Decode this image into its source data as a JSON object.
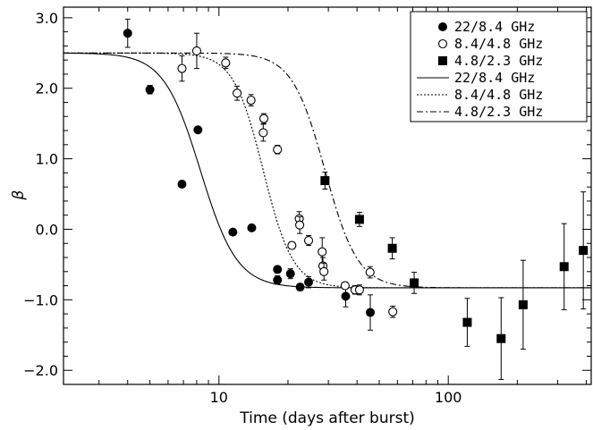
{
  "chart_data": {
    "type": "scatter",
    "title": "",
    "xlabel": "Time (days after burst)",
    "ylabel": "β",
    "xscale": "log",
    "xlim": [
      2.1,
      420
    ],
    "ylim": [
      -2.2,
      3.15
    ],
    "x_ticks": [
      {
        "value": 10,
        "label": "10"
      },
      {
        "value": 100,
        "label": "100"
      }
    ],
    "y_ticks": [
      {
        "value": 3.0,
        "label": "3.0"
      },
      {
        "value": 2.0,
        "label": "2.0"
      },
      {
        "value": 1.0,
        "label": "1.0"
      },
      {
        "value": 0.0,
        "label": "0.0"
      },
      {
        "value": -1.0,
        "label": "−1.0"
      },
      {
        "value": -2.0,
        "label": "−2.0"
      }
    ],
    "legend_position": "top-right",
    "series": [
      {
        "name": "22/8.4 GHz",
        "marker": "filled-circle",
        "points": [
          {
            "x": 4.0,
            "y": 2.78,
            "err": 0.2
          },
          {
            "x": 5.0,
            "y": 1.98,
            "err": 0.06
          },
          {
            "x": 6.9,
            "y": 0.64,
            "err": 0
          },
          {
            "x": 8.1,
            "y": 1.41,
            "err": 0
          },
          {
            "x": 11.5,
            "y": -0.04,
            "err": 0
          },
          {
            "x": 13.9,
            "y": 0.02,
            "err": 0
          },
          {
            "x": 18.0,
            "y": -0.57,
            "err": 0.05
          },
          {
            "x": 18.0,
            "y": -0.72,
            "err": 0.06
          },
          {
            "x": 20.5,
            "y": -0.63,
            "err": 0.07
          },
          {
            "x": 22.6,
            "y": -0.82,
            "err": 0.05
          },
          {
            "x": 24.6,
            "y": -0.75,
            "err": 0.08
          },
          {
            "x": 35.7,
            "y": -0.95,
            "err": 0.15
          },
          {
            "x": 45.7,
            "y": -1.18,
            "err": 0.25
          }
        ]
      },
      {
        "name": "8.4/4.8 GHz",
        "marker": "open-circle",
        "points": [
          {
            "x": 6.9,
            "y": 2.28,
            "err": 0.18
          },
          {
            "x": 8.0,
            "y": 2.53,
            "err": 0.25
          },
          {
            "x": 10.7,
            "y": 2.36,
            "err": 0.08
          },
          {
            "x": 12.0,
            "y": 1.93,
            "err": 0.1
          },
          {
            "x": 13.8,
            "y": 1.83,
            "err": 0.08
          },
          {
            "x": 15.7,
            "y": 1.57,
            "err": 0.07
          },
          {
            "x": 15.6,
            "y": 1.37,
            "err": 0.12
          },
          {
            "x": 18.0,
            "y": 1.13,
            "err": 0.06
          },
          {
            "x": 20.8,
            "y": -0.23,
            "err": 0.05
          },
          {
            "x": 22.4,
            "y": 0.15,
            "err": 0.1
          },
          {
            "x": 22.5,
            "y": 0.06,
            "err": 0.12
          },
          {
            "x": 24.6,
            "y": -0.16,
            "err": 0.07
          },
          {
            "x": 28.2,
            "y": -0.32,
            "err": 0.2
          },
          {
            "x": 28.4,
            "y": -0.52,
            "err": 0.12
          },
          {
            "x": 28.7,
            "y": -0.6,
            "err": 0.12
          },
          {
            "x": 35.5,
            "y": -0.8,
            "err": 0.05
          },
          {
            "x": 39.2,
            "y": -0.86,
            "err": 0.06
          },
          {
            "x": 41.0,
            "y": -0.86,
            "err": 0.07
          },
          {
            "x": 45.6,
            "y": -0.61,
            "err": 0.08
          },
          {
            "x": 57.3,
            "y": -1.17,
            "err": 0.08
          }
        ]
      },
      {
        "name": "4.8/2.3 GHz",
        "marker": "filled-square",
        "points": [
          {
            "x": 29.0,
            "y": 0.69,
            "err": 0.12
          },
          {
            "x": 41.0,
            "y": 0.14,
            "err": 0.1
          },
          {
            "x": 57.0,
            "y": -0.27,
            "err": 0.15
          },
          {
            "x": 71.0,
            "y": -0.76,
            "err": 0.15
          },
          {
            "x": 121.0,
            "y": -1.32,
            "err": 0.34
          },
          {
            "x": 170.0,
            "y": -1.55,
            "err": 0.58
          },
          {
            "x": 212.0,
            "y": -1.07,
            "err": 0.63
          },
          {
            "x": 320.0,
            "y": -0.53,
            "err": 0.61
          },
          {
            "x": 388.0,
            "y": -0.3,
            "err": 0.83
          }
        ]
      }
    ],
    "fits": [
      {
        "name": "22/8.4 GHz",
        "style": "solid",
        "y_high": 2.5,
        "y_low": -0.83,
        "x_mid": 8.3,
        "width": 0.08
      },
      {
        "name": "8.4/4.8 GHz",
        "style": "dotted",
        "y_high": 2.5,
        "y_low": -0.83,
        "x_mid": 15.6,
        "width": 0.065
      },
      {
        "name": "4.8/2.3 GHz",
        "style": "dashdot",
        "y_high": 2.5,
        "y_low": -0.83,
        "x_mid": 29.0,
        "width": 0.072
      }
    ]
  }
}
